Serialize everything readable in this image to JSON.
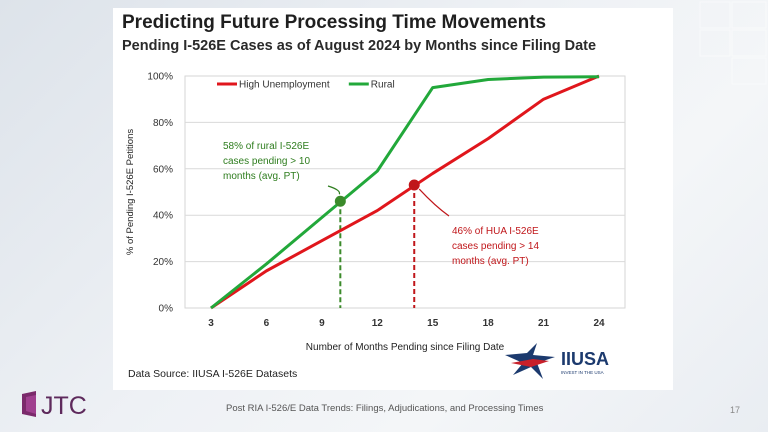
{
  "slide": {
    "title": "Predicting Future Processing Time Movements",
    "subtitle": "Pending I-526E Cases as of August 2024 by Months since Filing Date",
    "source": "Data Source: IIUSA I-526E Datasets",
    "footer": "Post RIA I-526/E Data Trends: Filings, Adjudications, and Processing Times",
    "page_number": "17",
    "company_logo": "JTC",
    "partner_logo": "IIUSA",
    "partner_tagline": "INVEST IN THE USA"
  },
  "chart_data": {
    "type": "line",
    "x": [
      3,
      6,
      9,
      12,
      15,
      18,
      21,
      24
    ],
    "xlim": [
      3,
      24
    ],
    "ylim": [
      0,
      100
    ],
    "xticks": [
      "3",
      "6",
      "9",
      "12",
      "15",
      "18",
      "21",
      "24"
    ],
    "yticks": [
      "0%",
      "20%",
      "40%",
      "60%",
      "80%",
      "100%"
    ],
    "xlabel": "Number of Months Pending since Filing Date",
    "ylabel": "% of Pending I-526E Petitions",
    "grid": true,
    "legend_position": "top-left",
    "series": [
      {
        "name": "High Unemployment",
        "color": "#e0161c",
        "values": [
          0,
          16,
          29,
          42,
          58,
          73,
          90,
          100
        ]
      },
      {
        "name": "Rural",
        "color": "#22a83a",
        "values": [
          0,
          19,
          39,
          59,
          95,
          98.5,
          99.5,
          99.7
        ]
      }
    ],
    "markers": [
      {
        "series": "Rural",
        "x": 10,
        "y": 46,
        "color": "#3b8a2a"
      },
      {
        "series": "High Unemployment",
        "x": 14,
        "y": 53,
        "color": "#c0161a"
      }
    ],
    "annotations": [
      {
        "lines": [
          "58% of rural I-526E",
          "cases pending > 10",
          "months (avg. PT)"
        ],
        "color": "#2e7d1e"
      },
      {
        "lines": [
          "46% of HUA I-526E",
          "cases pending > 14",
          "months (avg. PT)"
        ],
        "color": "#c0161a"
      }
    ]
  }
}
